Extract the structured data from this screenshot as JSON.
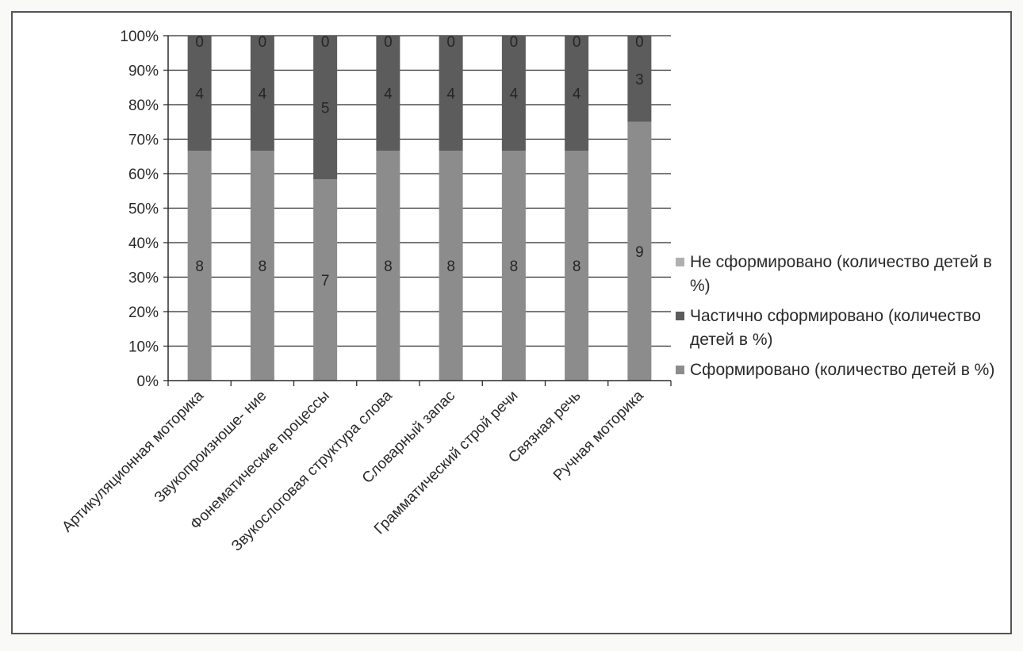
{
  "chart_data": {
    "type": "bar",
    "stacked": true,
    "percent_stacked": true,
    "categories": [
      "Артикуляционная моторика",
      "Звукопроизноше- ние",
      "Фонематические процессы",
      "Звукослоговая структура слова",
      "Словарный запас",
      "Грамматический строй речи",
      "Связная речь",
      "Ручная моторика"
    ],
    "series": [
      {
        "name": "Сформировано (количество детей в %)",
        "values": [
          8,
          8,
          7,
          8,
          8,
          8,
          8,
          9
        ],
        "color": "#8c8c8c"
      },
      {
        "name": "Частично сформировано (количество детей в %)",
        "values": [
          4,
          4,
          5,
          4,
          4,
          4,
          4,
          3
        ],
        "color": "#5c5c5c"
      },
      {
        "name": "Не сформировано (количество детей в %)",
        "values": [
          0,
          0,
          0,
          0,
          0,
          0,
          0,
          0
        ],
        "color": "#b0b0b0"
      }
    ],
    "yticks": [
      "0%",
      "10%",
      "20%",
      "30%",
      "40%",
      "50%",
      "60%",
      "70%",
      "80%",
      "90%",
      "100%"
    ],
    "ylim": [
      0,
      100
    ],
    "grid": true,
    "legend_position": "right",
    "legend_order": [
      2,
      1,
      0
    ]
  }
}
